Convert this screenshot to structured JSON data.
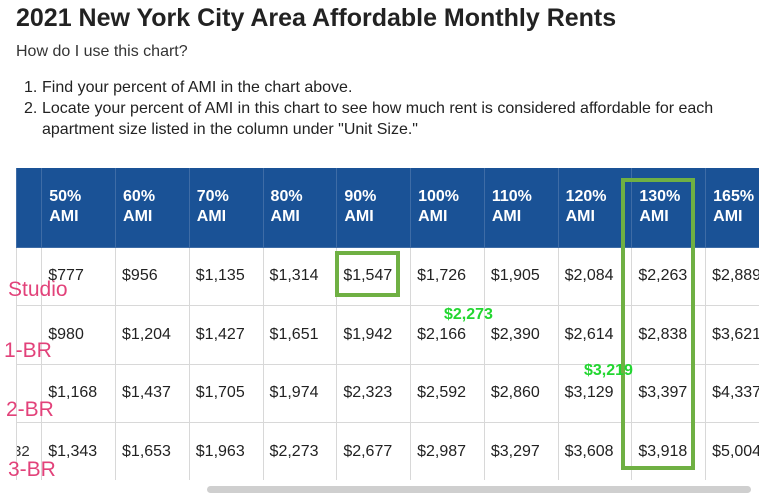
{
  "page": {
    "title": "2021 New York City Area Affordable Monthly Rents",
    "question": "How do I use this chart?",
    "steps": [
      "Find your percent of AMI in the chart above.",
      "Locate your percent of AMI in this chart to see how much rent is considered affordable for each apartment size listed in the column under \"Unit Size.\""
    ],
    "step_numbers": [
      "1.",
      "2."
    ]
  },
  "table": {
    "headers": [
      {
        "pct": "50%",
        "ami": "AMI"
      },
      {
        "pct": "60%",
        "ami": "AMI"
      },
      {
        "pct": "70%",
        "ami": "AMI"
      },
      {
        "pct": "80%",
        "ami": "AMI"
      },
      {
        "pct": "90%",
        "ami": "AMI"
      },
      {
        "pct": "100%",
        "ami": "AMI"
      },
      {
        "pct": "110%",
        "ami": "AMI"
      },
      {
        "pct": "120%",
        "ami": "AMI"
      },
      {
        "pct": "130%",
        "ami": "AMI"
      },
      {
        "pct": "165%",
        "ami": "AMI"
      }
    ],
    "rows": [
      {
        "unit": "",
        "cells": [
          "$777",
          "$956",
          "$1,135",
          "$1,314",
          "$1,547",
          "$1,726",
          "$1,905",
          "$2,084",
          "$2,263",
          "$2,889"
        ]
      },
      {
        "unit": "",
        "cells": [
          "$980",
          "$1,204",
          "$1,427",
          "$1,651",
          "$1,942",
          "$2,166",
          "$2,390",
          "$2,614",
          "$2,838",
          "$3,621"
        ]
      },
      {
        "unit": "",
        "cells": [
          "$1,168",
          "$1,437",
          "$1,705",
          "$1,974",
          "$2,323",
          "$2,592",
          "$2,860",
          "$3,129",
          "$3,397",
          "$4,337"
        ]
      },
      {
        "unit": "32",
        "cells": [
          "$1,343",
          "$1,653",
          "$1,963",
          "$2,273",
          "$2,677",
          "$2,987",
          "$3,297",
          "$3,608",
          "$3,918",
          "$5,004"
        ]
      }
    ]
  },
  "overlay": {
    "row_labels": [
      "Studio",
      "1-BR",
      "2-BR",
      "3-BR"
    ],
    "annotations": [
      "$2,273",
      "$3,219"
    ],
    "highlight_color": "#6fb043",
    "label_color": "#e2427a",
    "annotation_color": "#22d630",
    "header_color": "#1a5296"
  }
}
